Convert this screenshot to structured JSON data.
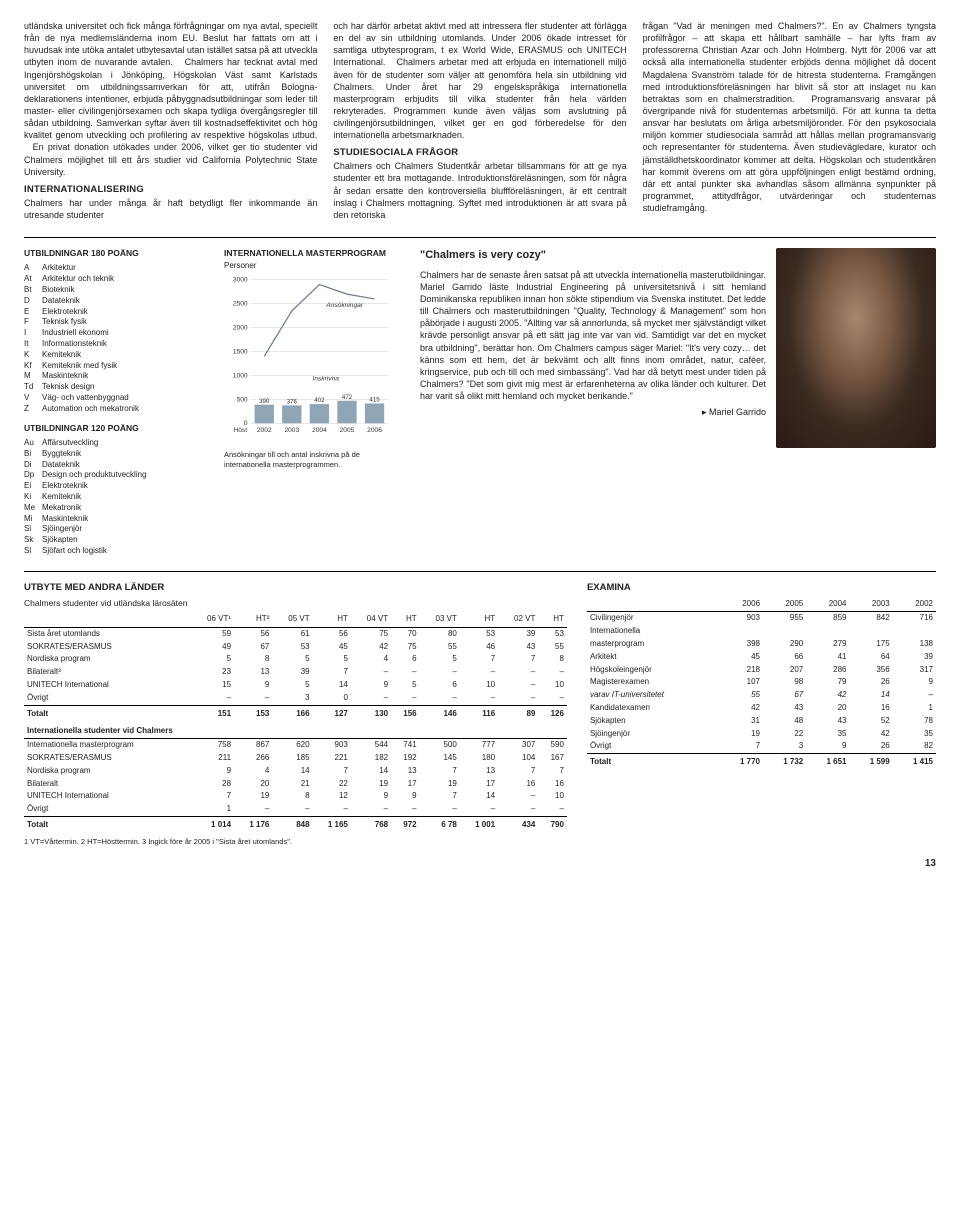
{
  "body": {
    "col1": "utländska universitet och fick många förfrågningar om nya avtal, speciellt från de nya medlemsländerna inom EU. Beslut har fattats om att i huvudsak inte utöka antalet utbytesavtal utan istället satsa på att utveckla utbyten inom de nuvarande avtalen.\n  Chalmers har tecknat avtal med Ingenjörshögskolan i Jönköping, Högskolan Väst samt Karlstads universitet om utbildningssamverkan för att, utifrån Bologna-deklarationens intentioner, erbjuda påbyggnadsutbildningar som leder till master- eller civilingenjörsexamen och skapa tydliga övergångsregler till sådan utbildning. Samverkan syftar även till kostnadseffektivitet och hög kvalitet genom utveckling och profilering av respektive högskolas utbud.\n  En privat donation utökades under 2006, vilket ger tio studenter vid Chalmers möjlighet till ett års studier vid California Polytechnic State University.",
    "col1_h": "INTERNATIONALISERING",
    "col1b": "Chalmers har under många år haft betydligt fler inkommande än utresande studenter",
    "col2": "och har därför arbetat aktivt med att intressera fler studenter att förlägga en del av sin utbildning utomlands. Under 2006 ökade intresset för samtliga utbytesprogram, t ex World Wide, ERASMUS och UNITECH International.\n  Chalmers arbetar med att erbjuda en internationell miljö även för de studenter som väljer att genomföra hela sin utbildning vid Chalmers. Under året har 29 engelskspråkiga internationella masterprogram erbjudits till vilka studenter från hela världen rekryterades. Programmen kunde även väljas som avslutning på civilingenjörsutbildningen, vilket ger en god förberedelse för den internationella arbetsmarknaden.",
    "col2_h": "STUDIESOCIALA FRÅGOR",
    "col2b": "Chalmers och Chalmers Studentkår arbetar tillsammans för att ge nya studenter ett bra mottagande. Introduktionsföreläsningen, som för några år sedan ersatte den kontroversiella bluffföreläsningen, är ett centralt inslag i Chalmers mottagning. Syftet med introduktionen är att svara på den retoriska",
    "col3": "frågan \"Vad är meningen med Chalmers?\". En av Chalmers tyngsta profilfrågor – att skapa ett hållbart samhälle – har lyfts fram av professorerna Christian Azar och John Holmberg. Nytt för 2006 var att också alla internationella studenter erbjöds denna möjlighet då docent Magdalena Svanström talade för de hitresta studenterna. Framgången med introduktionsföreläsningen har blivit så stor att inslaget nu kan betraktas som en chalmerstradition.\n  Programansvarig ansvarar på övergripande nivå för studenternas arbetsmiljö. För att kunna ta detta ansvar har beslutats om årliga arbetsmiljöronder. För den psykosociala miljön kommer studiesociala samråd att hållas mellan programansvarig och representanter för studenterna. Även studievägledare, kurator och jämställdhetskoordinator kommer att delta. Högskolan och studentkåren har kommit överens om att göra uppföljningen enligt bestämd ordning, där ett antal punkter ska avhandlas såsom allmänna synpunkter på programmet, attitydfrågor, utvärderingar och studenternas studieframgång."
  },
  "programs180": {
    "title": "UTBILDNINGAR 180 POÄNG",
    "items": [
      {
        "c": "A",
        "n": "Arkitektur"
      },
      {
        "c": "At",
        "n": "Arkitektur och teknik"
      },
      {
        "c": "Bt",
        "n": "Bioteknik"
      },
      {
        "c": "D",
        "n": "Datateknik"
      },
      {
        "c": "E",
        "n": "Elektroteknik"
      },
      {
        "c": "F",
        "n": "Teknisk fysik"
      },
      {
        "c": "I",
        "n": "Industriell ekonomi"
      },
      {
        "c": "It",
        "n": "Informationsteknik"
      },
      {
        "c": "K",
        "n": "Kemiteknik"
      },
      {
        "c": "Kf",
        "n": "Kemiteknik med fysik"
      },
      {
        "c": "M",
        "n": "Maskinteknik"
      },
      {
        "c": "Td",
        "n": "Teknisk design"
      },
      {
        "c": "V",
        "n": "Väg- och vattenbyggnad"
      },
      {
        "c": "Z",
        "n": "Automation och mekatronik"
      }
    ]
  },
  "programs120": {
    "title": "UTBILDNINGAR 120 POÄNG",
    "items": [
      {
        "c": "Au",
        "n": "Affärsutveckling"
      },
      {
        "c": "Bi",
        "n": "Byggteknik"
      },
      {
        "c": "Di",
        "n": "Datateknik"
      },
      {
        "c": "Dp",
        "n": "Design och produktutveckling"
      },
      {
        "c": "Ei",
        "n": "Elektroteknik"
      },
      {
        "c": "Ki",
        "n": "Kemiteknik"
      },
      {
        "c": "Me",
        "n": "Mekatronik"
      },
      {
        "c": "Mi",
        "n": "Maskinteknik"
      },
      {
        "c": "Si",
        "n": "Sjöingenjör"
      },
      {
        "c": "Sk",
        "n": "Sjökapten"
      },
      {
        "c": "Sl",
        "n": "Sjöfart och logistik"
      }
    ]
  },
  "chart": {
    "title": "INTERNATIONELLA MASTERPROGRAM",
    "sub": "Personer",
    "ymax": 3000,
    "ytick": 500,
    "bars": {
      "label": "Inskrivna",
      "color": "#8fa4b5",
      "values": [
        390,
        376,
        402,
        472,
        415
      ],
      "categories": [
        "2002",
        "2003",
        "2004",
        "2005",
        "2006"
      ]
    },
    "line": {
      "label": "Ansökningar",
      "color": "#6a7a88",
      "values": [
        1400,
        2350,
        2900,
        2700,
        2600
      ]
    },
    "xaxis_label": "Höst",
    "caption": "Ansökningar till och antal inskrivna på de internationella masterprogrammen."
  },
  "cozy": {
    "title": "\"Chalmers is very cozy\"",
    "text": "Chalmers har de senaste åren satsat på att utveckla internationella masterutbildningar. Mariel Garrido läste Industrial Engineering på universitetsnivå i sitt hemland Dominikanska republiken innan hon sökte stipendium via Svenska institutet. Det ledde till Chalmers och masterutbildningen \"Quality, Technology & Management\" som hon påbörjade i augusti 2005. \"Allting var så annorlunda, så mycket mer självständigt vilket krävde personligt ansvar på ett sätt jag inte var van vid. Samtidigt var det en mycket bra utbildning\", berättar hon. Om Chalmers campus säger Mariel: \"It's very cozy… det känns som ett hem, det är bekvämt och allt finns inom området, natur, caféer, kringservice, pub och till och med simbassäng\". Vad har då betytt mest under tiden på Chalmers? \"Det som givit mig mest är erfarenheterna av olika länder och kulturer. Det har varit så olikt mitt hemland och mycket berikande.\"",
    "sig": "▸ Mariel Garrido"
  },
  "exchange": {
    "title": "UTBYTE MED ANDRA LÄNDER",
    "sub1": "Chalmers studenter vid utländska lärosäten",
    "head": [
      "",
      "06 VT¹",
      "HT²",
      "05 VT",
      "HT",
      "04 VT",
      "HT",
      "03 VT",
      "HT",
      "02 VT",
      "HT"
    ],
    "rows1": [
      [
        "Sista året utomlands",
        "59",
        "56",
        "61",
        "56",
        "75",
        "70",
        "80",
        "53",
        "39",
        "53"
      ],
      [
        "SOKRATES/ERASMUS",
        "49",
        "67",
        "53",
        "45",
        "42",
        "75",
        "55",
        "46",
        "43",
        "55"
      ],
      [
        "Nordiska program",
        "5",
        "8",
        "5",
        "5",
        "4",
        "6",
        "5",
        "7",
        "7",
        "8"
      ],
      [
        "Bilateralt³",
        "23",
        "13",
        "39",
        "7",
        "–",
        "–",
        "–",
        "–",
        "–",
        "–"
      ],
      [
        "UNITECH International",
        "15",
        "9",
        "5",
        "14",
        "9",
        "5",
        "6",
        "10",
        "–",
        "10"
      ],
      [
        "Övrigt",
        "–",
        "–",
        "3",
        "0",
        "–",
        "–",
        "–",
        "–",
        "–",
        "–"
      ]
    ],
    "tot1": [
      "Totalt",
      "151",
      "153",
      "166",
      "127",
      "130",
      "156",
      "146",
      "116",
      "89",
      "126"
    ],
    "sub2": "Internationella studenter vid Chalmers",
    "rows2": [
      [
        "Internationella masterprogram",
        "758",
        "867",
        "620",
        "903",
        "544",
        "741",
        "500",
        "777",
        "307",
        "590"
      ],
      [
        "SOKRATES/ERASMUS",
        "211",
        "266",
        "185",
        "221",
        "182",
        "192",
        "145",
        "180",
        "104",
        "167"
      ],
      [
        "Nordiska program",
        "9",
        "4",
        "14",
        "7",
        "14",
        "13",
        "7",
        "13",
        "7",
        "7"
      ],
      [
        "Bilateralt",
        "28",
        "20",
        "21",
        "22",
        "19",
        "17",
        "19",
        "17",
        "16",
        "16"
      ],
      [
        "UNITECH International",
        "7",
        "19",
        "8",
        "12",
        "9",
        "9",
        "7",
        "14",
        "–",
        "10"
      ],
      [
        "Övrigt",
        "1",
        "–",
        "–",
        "–",
        "–",
        "–",
        "–",
        "–",
        "–",
        "–"
      ]
    ],
    "tot2": [
      "Totalt",
      "1 014",
      "1 176",
      "848",
      "1 165",
      "768",
      "972",
      "6 78",
      "1 001",
      "434",
      "790"
    ],
    "foot": "1 VT=Vårtermin.  2 HT=Hösttermin.  3 Ingick före år 2005 i \"Sista året utomlands\"."
  },
  "examina": {
    "title": "EXAMINA",
    "head": [
      "",
      "2006",
      "2005",
      "2004",
      "2003",
      "2002"
    ],
    "rows": [
      [
        "Civilingenjör",
        "903",
        "955",
        "859",
        "842",
        "716"
      ],
      [
        "Internationella",
        "",
        " ",
        " ",
        " ",
        " "
      ],
      [
        "masterprogram",
        "398",
        "290",
        "279",
        "175",
        "138"
      ],
      [
        "Arkitekt",
        "45",
        "66",
        "41",
        "64",
        "39"
      ],
      [
        "Högskoleingenjör",
        "218",
        "207",
        "286",
        "356",
        "317"
      ],
      [
        "Magisterexamen",
        "107",
        "98",
        "79",
        "26",
        "9"
      ],
      [
        "varav IT-universitetet",
        "55",
        "67",
        "42",
        "14",
        "–"
      ],
      [
        "Kandidatexamen",
        "42",
        "43",
        "20",
        "16",
        "1"
      ],
      [
        "Sjökapten",
        "31",
        "48",
        "43",
        "52",
        "78"
      ],
      [
        "Sjöingenjör",
        "19",
        "22",
        "35",
        "42",
        "35"
      ],
      [
        "Övrigt",
        "7",
        "3",
        "9",
        "26",
        "82"
      ]
    ],
    "tot": [
      "Totalt",
      "1 770",
      "1 732",
      "1 651",
      "1 599",
      "1 415"
    ]
  },
  "pagenum": "13"
}
